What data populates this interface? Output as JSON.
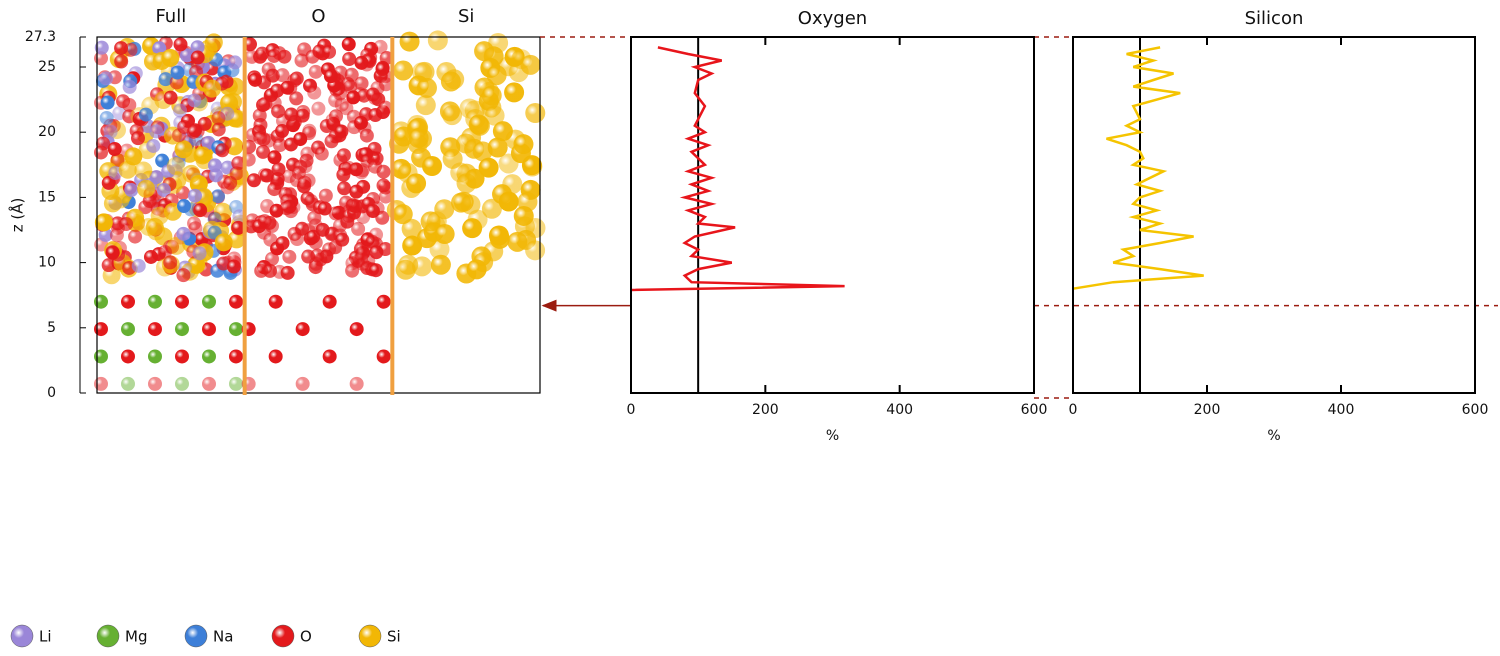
{
  "chart_data": [
    {
      "type": "image",
      "panels": [
        "Full",
        "O",
        "Si"
      ],
      "ylabel": "z (Å)",
      "ylim": [
        0,
        27.3
      ],
      "yticks": [
        0,
        5,
        10,
        15,
        20,
        25,
        27.3
      ],
      "surface_z": 6.7,
      "legend": [
        {
          "label": "Li",
          "color": "#9a86d8"
        },
        {
          "label": "Mg",
          "color": "#66b032"
        },
        {
          "label": "Na",
          "color": "#3d7fd8"
        },
        {
          "label": "O",
          "color": "#e3191c"
        },
        {
          "label": "Si",
          "color": "#f2b705"
        }
      ]
    },
    {
      "type": "line",
      "title": "Oxygen",
      "xlabel": "%",
      "color": "#e8151b",
      "reference": 100,
      "xlim": [
        0,
        600
      ],
      "xticks": [
        0,
        200,
        400,
        600
      ],
      "ylim": [
        0,
        27.3
      ],
      "y": [
        7.9,
        8.2,
        8.5,
        9.0,
        9.5,
        10.0,
        10.5,
        11.0,
        11.5,
        12.0,
        12.7,
        13.0,
        13.5,
        14.0,
        14.5,
        15.0,
        15.5,
        16.0,
        16.5,
        17.0,
        17.5,
        18.0,
        18.5,
        19.0,
        19.5,
        20.0,
        20.5,
        21.0,
        22.0,
        23.0,
        24.0,
        24.5,
        25.0,
        25.5,
        26.0,
        26.5
      ],
      "values": [
        0,
        318,
        90,
        80,
        100,
        150,
        90,
        100,
        80,
        95,
        155,
        100,
        110,
        85,
        120,
        80,
        115,
        90,
        120,
        85,
        110,
        100,
        90,
        115,
        85,
        110,
        95,
        100,
        110,
        95,
        100,
        120,
        95,
        135,
        85,
        40
      ]
    },
    {
      "type": "line",
      "title": "Silicon",
      "xlabel": "%",
      "color": "#f5c400",
      "reference": 100,
      "xlim": [
        0,
        600
      ],
      "xticks": [
        0,
        200,
        400,
        600
      ],
      "ylim": [
        0,
        27.3
      ],
      "y": [
        8.0,
        8.5,
        9.0,
        9.5,
        10.0,
        10.5,
        11.0,
        11.5,
        12.0,
        12.5,
        13.0,
        13.5,
        14.0,
        14.5,
        15.0,
        15.5,
        16.0,
        17.0,
        17.5,
        18.0,
        18.5,
        19.0,
        19.5,
        20.0,
        20.5,
        21.0,
        22.0,
        23.0,
        23.5,
        24.0,
        24.5,
        25.0,
        25.5,
        26.0,
        26.5
      ],
      "values": [
        0,
        60,
        195,
        130,
        60,
        90,
        75,
        130,
        180,
        100,
        130,
        90,
        125,
        90,
        100,
        130,
        95,
        135,
        90,
        105,
        100,
        80,
        50,
        100,
        80,
        100,
        90,
        160,
        90,
        120,
        150,
        90,
        120,
        80,
        130
      ]
    }
  ]
}
